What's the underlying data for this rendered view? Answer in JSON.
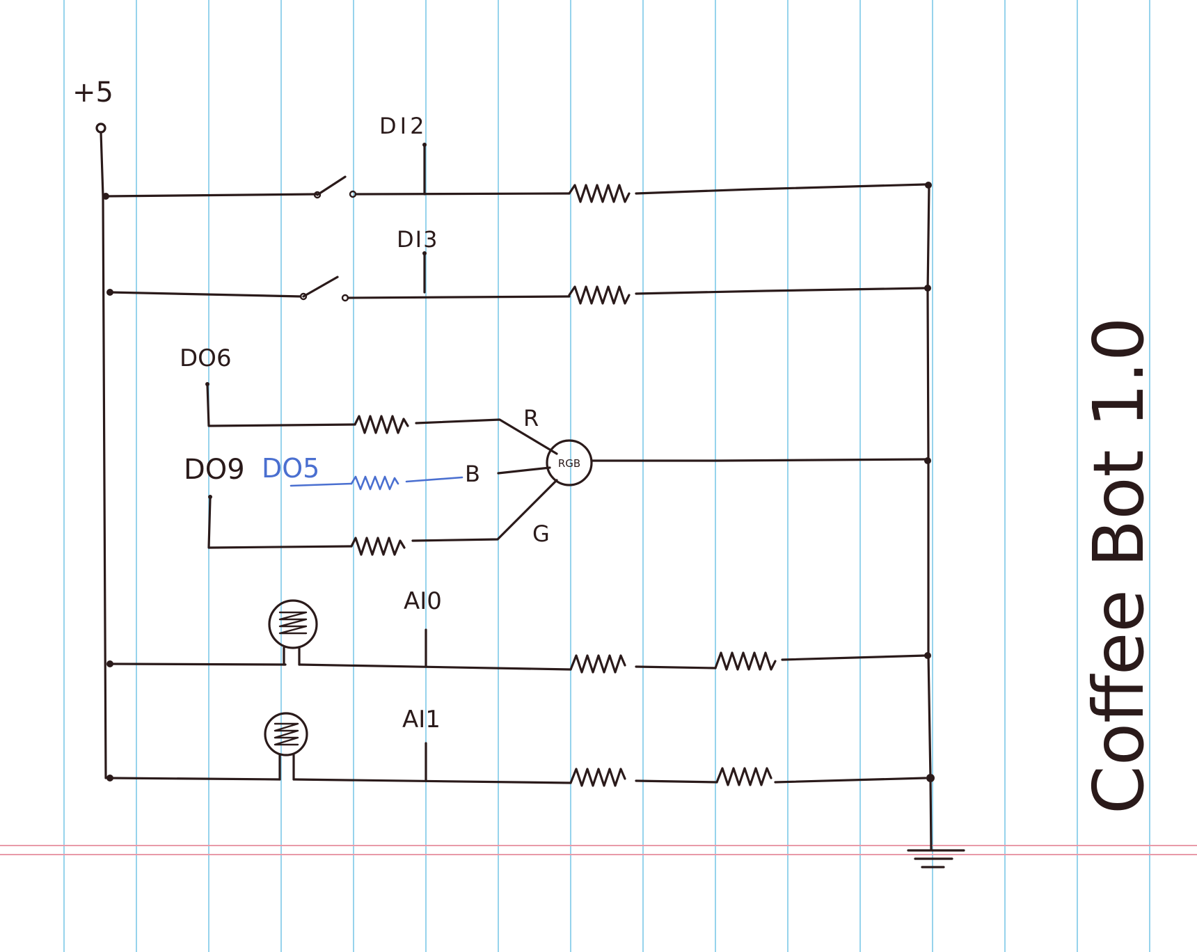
{
  "title": "Coffee Bot 1.0",
  "supply_label": "+5",
  "rows": [
    {
      "id": "row1",
      "pin_label": "DI2"
    },
    {
      "id": "row2",
      "pin_label": "DI3"
    },
    {
      "id": "row5",
      "pin_label": "AI0"
    },
    {
      "id": "row6",
      "pin_label": "AI1"
    }
  ],
  "rgb_led": {
    "label": "RGB",
    "red_pin": "DO6",
    "green_pin": "DO9",
    "blue_pin": "DO5",
    "red_label": "R",
    "green_label": "G",
    "blue_label": "B"
  },
  "colors": {
    "paper": "#ffffff",
    "rule_line": "#7cc8e8",
    "margin_line": "#e89aa8",
    "ink": "#2a1a1a",
    "blue_ink": "#4a6fd0"
  }
}
